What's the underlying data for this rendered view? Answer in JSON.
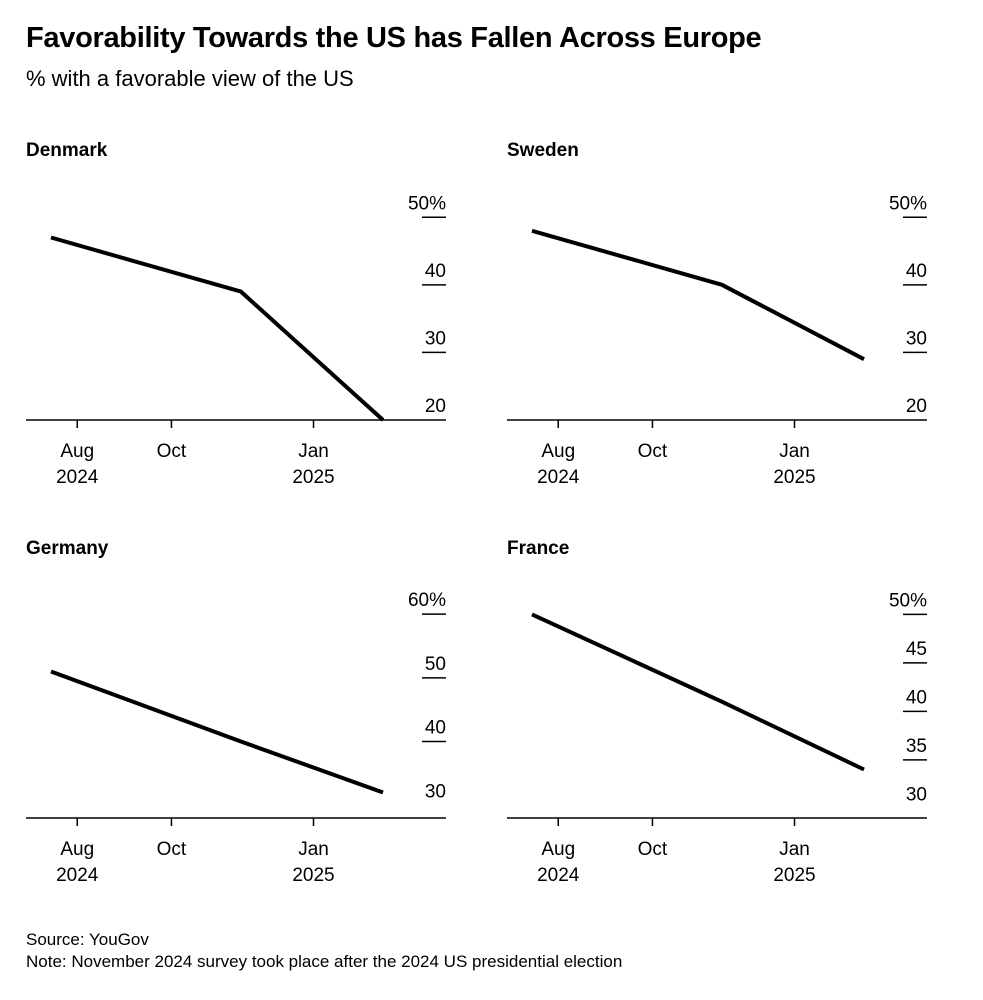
{
  "title": "Favorability Towards the US has Fallen Across Europe",
  "subtitle": "% with a favorable view of the US",
  "footer": {
    "source": "Source: YouGov",
    "note": "Note: November 2024 survey took place after the 2024 US presidential election"
  },
  "chart_data": [
    {
      "type": "line",
      "title": "Denmark",
      "x": [
        "2024-07-15",
        "2024-11-15",
        "2025-02-15"
      ],
      "values": [
        47,
        39,
        20
      ],
      "ylim": [
        20,
        53
      ],
      "yticks": [
        20,
        30,
        40,
        50
      ],
      "ytick_labels": [
        "20",
        "30",
        "40",
        "50%"
      ],
      "xticks": [
        {
          "date": "2024-08-01",
          "line1": "Aug",
          "line2": "2024"
        },
        {
          "date": "2024-10-01",
          "line1": "Oct",
          "line2": ""
        },
        {
          "date": "2025-01-01",
          "line1": "Jan",
          "line2": "2025"
        }
      ]
    },
    {
      "type": "line",
      "title": "Sweden",
      "x": [
        "2024-07-15",
        "2024-11-15",
        "2025-02-15"
      ],
      "values": [
        48,
        40,
        29
      ],
      "ylim": [
        20,
        53
      ],
      "yticks": [
        20,
        30,
        40,
        50
      ],
      "ytick_labels": [
        "20",
        "30",
        "40",
        "50%"
      ],
      "xticks": [
        {
          "date": "2024-08-01",
          "line1": "Aug",
          "line2": "2024"
        },
        {
          "date": "2024-10-01",
          "line1": "Oct",
          "line2": ""
        },
        {
          "date": "2025-01-01",
          "line1": "Jan",
          "line2": "2025"
        }
      ]
    },
    {
      "type": "line",
      "title": "Germany",
      "x": [
        "2024-07-15",
        "2024-11-15",
        "2025-02-15"
      ],
      "values": [
        51,
        40,
        32
      ],
      "ylim": [
        28,
        63
      ],
      "yticks": [
        30,
        40,
        50,
        60
      ],
      "ytick_labels": [
        "30",
        "40",
        "50",
        "60%"
      ],
      "xticks": [
        {
          "date": "2024-08-01",
          "line1": "Aug",
          "line2": "2024"
        },
        {
          "date": "2024-10-01",
          "line1": "Oct",
          "line2": ""
        },
        {
          "date": "2025-01-01",
          "line1": "Jan",
          "line2": "2025"
        }
      ]
    },
    {
      "type": "line",
      "title": "France",
      "x": [
        "2024-07-15",
        "2024-11-15",
        "2025-02-15"
      ],
      "values": [
        50,
        41,
        34
      ],
      "ylim": [
        29,
        52
      ],
      "yticks": [
        30,
        35,
        40,
        45,
        50
      ],
      "ytick_labels": [
        "30",
        "35",
        "40",
        "45",
        "50%"
      ],
      "xticks": [
        {
          "date": "2024-08-01",
          "line1": "Aug",
          "line2": "2024"
        },
        {
          "date": "2024-10-01",
          "line1": "Oct",
          "line2": ""
        },
        {
          "date": "2025-01-01",
          "line1": "Jan",
          "line2": "2025"
        }
      ]
    }
  ]
}
